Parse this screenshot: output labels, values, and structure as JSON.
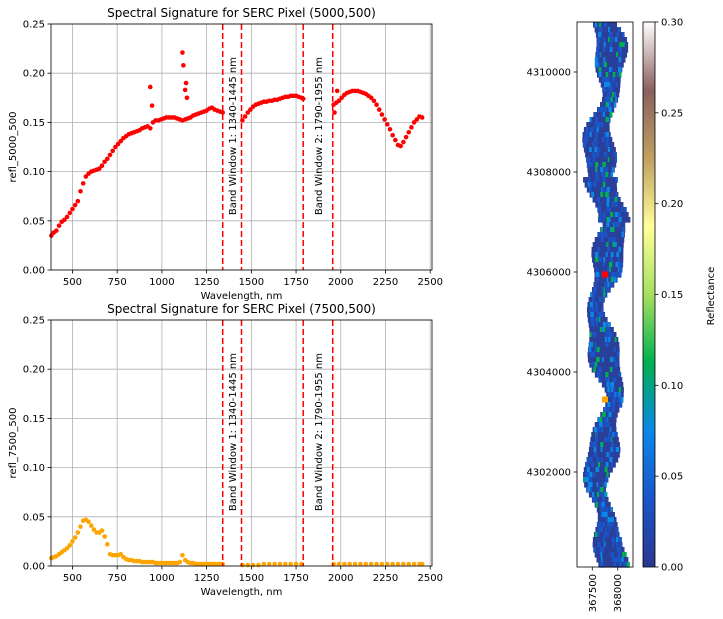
{
  "chart_data": [
    {
      "type": "scatter",
      "title": "Spectral Signature for SERC Pixel (5000,500)",
      "xlabel": "Wavelength, nm",
      "ylabel": "refl_5000_500",
      "xlim": [
        380,
        2510
      ],
      "ylim": [
        0,
        0.25
      ],
      "xticks": [
        500,
        750,
        1000,
        1250,
        1500,
        1750,
        2000,
        2250,
        2500
      ],
      "yticks": [
        0.0,
        0.05,
        0.1,
        0.15,
        0.2,
        0.25
      ],
      "grid": true,
      "marker_color": "#ff0000",
      "band_windows": [
        {
          "label": "Band Window 1: 1340-1445 nm",
          "x_start": 1340,
          "x_end": 1445
        },
        {
          "label": "Band Window 2: 1790-1955 nm",
          "x_start": 1790,
          "x_end": 1955
        }
      ],
      "series": [
        {
          "name": "refl_5000_500",
          "x": [
            382,
            395,
            410,
            425,
            440,
            455,
            470,
            485,
            500,
            515,
            530,
            545,
            560,
            575,
            590,
            605,
            620,
            635,
            650,
            665,
            680,
            695,
            710,
            725,
            740,
            755,
            770,
            785,
            800,
            815,
            830,
            845,
            860,
            875,
            890,
            905,
            920,
            935,
            950,
            965,
            980,
            995,
            1010,
            1025,
            1040,
            1055,
            1070,
            1085,
            1100,
            1115,
            1130,
            1145,
            1160,
            1175,
            1190,
            1205,
            1220,
            1235,
            1250,
            1265,
            1280,
            1295,
            1310,
            1325,
            1340,
            1450,
            1465,
            1480,
            1495,
            1510,
            1525,
            1540,
            1555,
            1570,
            1585,
            1600,
            1615,
            1630,
            1645,
            1660,
            1675,
            1690,
            1705,
            1720,
            1735,
            1750,
            1765,
            1780,
            1790,
            1960,
            1975,
            1990,
            2005,
            2020,
            2035,
            2050,
            2065,
            2080,
            2095,
            2110,
            2125,
            2140,
            2155,
            2170,
            2185,
            2200,
            2215,
            2230,
            2245,
            2260,
            2275,
            2290,
            2305,
            2320,
            2335,
            2350,
            2365,
            2380,
            2395,
            2410,
            2425,
            2440,
            2455,
            935,
            945,
            1115,
            1120,
            1130,
            1135,
            1140,
            1965,
            1980
          ],
          "y": [
            0.035,
            0.038,
            0.04,
            0.045,
            0.049,
            0.051,
            0.054,
            0.058,
            0.062,
            0.066,
            0.07,
            0.08,
            0.088,
            0.095,
            0.098,
            0.1,
            0.101,
            0.102,
            0.103,
            0.106,
            0.11,
            0.113,
            0.117,
            0.121,
            0.125,
            0.128,
            0.131,
            0.134,
            0.136,
            0.138,
            0.139,
            0.14,
            0.141,
            0.142,
            0.144,
            0.145,
            0.146,
            0.144,
            0.15,
            0.152,
            0.152,
            0.153,
            0.154,
            0.155,
            0.155,
            0.155,
            0.155,
            0.154,
            0.153,
            0.152,
            0.153,
            0.154,
            0.155,
            0.157,
            0.158,
            0.159,
            0.16,
            0.161,
            0.162,
            0.164,
            0.165,
            0.163,
            0.162,
            0.161,
            0.16,
            0.152,
            0.156,
            0.16,
            0.163,
            0.166,
            0.168,
            0.169,
            0.17,
            0.171,
            0.171,
            0.172,
            0.172,
            0.173,
            0.173,
            0.174,
            0.175,
            0.176,
            0.176,
            0.177,
            0.177,
            0.177,
            0.176,
            0.175,
            0.174,
            0.168,
            0.17,
            0.172,
            0.175,
            0.178,
            0.18,
            0.181,
            0.182,
            0.182,
            0.182,
            0.181,
            0.18,
            0.179,
            0.177,
            0.175,
            0.172,
            0.168,
            0.163,
            0.158,
            0.153,
            0.148,
            0.143,
            0.137,
            0.132,
            0.127,
            0.126,
            0.13,
            0.135,
            0.14,
            0.145,
            0.15,
            0.153,
            0.156,
            0.155,
            0.186,
            0.167,
            0.221,
            0.208,
            0.183,
            0.19,
            0.175,
            0.16,
            0.182
          ]
        }
      ]
    },
    {
      "type": "scatter",
      "title": "Spectral Signature for SERC Pixel (7500,500)",
      "xlabel": "Wavelength, nm",
      "ylabel": "refl_7500_500",
      "xlim": [
        380,
        2510
      ],
      "ylim": [
        0,
        0.25
      ],
      "xticks": [
        500,
        750,
        1000,
        1250,
        1500,
        1750,
        2000,
        2250,
        2500
      ],
      "yticks": [
        0.0,
        0.05,
        0.1,
        0.15,
        0.2,
        0.25
      ],
      "grid": true,
      "marker_color": "#ffa500",
      "band_windows": [
        {
          "label": "Band Window 1: 1340-1445 nm",
          "x_start": 1340,
          "x_end": 1445
        },
        {
          "label": "Band Window 2: 1790-1955 nm",
          "x_start": 1790,
          "x_end": 1955
        }
      ],
      "series": [
        {
          "name": "refl_7500_500",
          "x": [
            382,
            395,
            410,
            425,
            440,
            455,
            470,
            485,
            500,
            515,
            530,
            545,
            560,
            575,
            590,
            605,
            620,
            635,
            650,
            665,
            680,
            695,
            710,
            725,
            740,
            755,
            770,
            785,
            800,
            815,
            830,
            845,
            860,
            875,
            890,
            905,
            920,
            935,
            950,
            965,
            980,
            995,
            1010,
            1025,
            1040,
            1055,
            1070,
            1085,
            1100,
            1115,
            1130,
            1145,
            1160,
            1175,
            1190,
            1205,
            1220,
            1235,
            1250,
            1265,
            1280,
            1295,
            1310,
            1325,
            1340,
            1450,
            1480,
            1510,
            1540,
            1570,
            1600,
            1630,
            1660,
            1690,
            1720,
            1750,
            1780,
            1960,
            1990,
            2020,
            2050,
            2080,
            2110,
            2140,
            2170,
            2200,
            2230,
            2260,
            2290,
            2320,
            2350,
            2380,
            2410,
            2440,
            2455
          ],
          "y": [
            0.008,
            0.009,
            0.01,
            0.012,
            0.014,
            0.016,
            0.018,
            0.021,
            0.025,
            0.029,
            0.034,
            0.04,
            0.046,
            0.047,
            0.045,
            0.041,
            0.037,
            0.034,
            0.034,
            0.036,
            0.03,
            0.022,
            0.012,
            0.011,
            0.011,
            0.011,
            0.012,
            0.009,
            0.007,
            0.006,
            0.006,
            0.005,
            0.005,
            0.005,
            0.004,
            0.004,
            0.004,
            0.004,
            0.004,
            0.003,
            0.003,
            0.003,
            0.003,
            0.003,
            0.003,
            0.003,
            0.003,
            0.003,
            0.004,
            0.011,
            0.006,
            0.004,
            0.003,
            0.003,
            0.002,
            0.002,
            0.002,
            0.002,
            0.002,
            0.002,
            0.002,
            0.002,
            0.002,
            0.002,
            0.002,
            0.001,
            0.001,
            0.001,
            0.001,
            0.002,
            0.002,
            0.002,
            0.002,
            0.002,
            0.002,
            0.002,
            0.002,
            0.002,
            0.002,
            0.002,
            0.002,
            0.002,
            0.002,
            0.002,
            0.002,
            0.002,
            0.002,
            0.002,
            0.002,
            0.002,
            0.002,
            0.002,
            0.002,
            0.002,
            0.002
          ]
        }
      ]
    },
    {
      "type": "heatmap",
      "title": "",
      "xlim": [
        367200,
        368300
      ],
      "ylim": [
        4300100,
        4311000
      ],
      "xticks": [
        367500,
        368000
      ],
      "yticks": [
        4302000,
        4304000,
        4306000,
        4308000,
        4310000
      ],
      "markers": [
        {
          "color": "#ff0000",
          "x": 367750,
          "y": 4305950
        },
        {
          "color": "#ffa500",
          "x": 367750,
          "y": 4303450
        }
      ],
      "colorbar": {
        "label": "Reflectance",
        "range": [
          0,
          0.3
        ],
        "ticks": [
          "0.00",
          "0.05",
          "0.10",
          "0.15",
          "0.20",
          "0.25",
          "0.30"
        ],
        "colors": [
          "#2a3790",
          "#1a55c8",
          "#0a88e8",
          "#00b050",
          "#a6e060",
          "#ffff99",
          "#c0a060",
          "#8a6060",
          "#ffffff"
        ]
      }
    }
  ]
}
